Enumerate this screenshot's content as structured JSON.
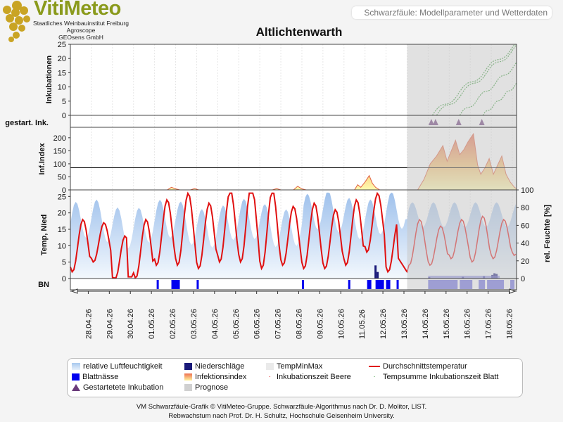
{
  "header": {
    "logo_title": "VitiMeteo",
    "logo_lines": [
      "Staatliches Weinbauinstitut Freiburg",
      "Agroscope",
      "GEOsens GmbH"
    ],
    "subtitle": "Schwarzfäule: Modellparameter und Wetterdaten",
    "title": "Altlichtenwarth"
  },
  "footer": {
    "line1": "VM Schwarzfäule-Grafik © VitiMeteo-Gruppe. Schwarzfäule-Algorithmus nach Dr. D. Molitor, LIST.",
    "line2": "Rebwachstum nach Prof. Dr. H. Schultz, Hochschule Geisenheim University."
  },
  "legend": {
    "rh": "relative Luftfeuchtigkeit",
    "precip": "Niederschläge",
    "minmax": "TempMinMax",
    "avgtemp": "Durchschnittstemperatur",
    "leafwet": "Blattnässe",
    "infindex": "Infektionsindex",
    "incub_berry": "Inkubationszeit Beere",
    "tempsum": "Tempsumme Inkubationszeit Blatt",
    "started": "Gestartetete Inkubation",
    "forecast": "Prognose"
  },
  "colors": {
    "avg_temp": "#e01010",
    "rh_fill": "#a9c9ee",
    "leaf_wetness": "#0000ee",
    "precip": "#1a1a7a",
    "forecast_shade": "#c8c8c8",
    "incubation": "#3a9a3a",
    "infection_line": "#e06040",
    "triangle": "#6a3a7a"
  },
  "chart_data": {
    "type": "line",
    "x_labels": [
      "28.04.26",
      "29.04.26",
      "30.04.26",
      "01.05.26",
      "02.05.26",
      "03.05.26",
      "04.05.26",
      "05.05.26",
      "06.05.26",
      "07.05.26",
      "08.05.26",
      "09.05.26",
      "10.05.26",
      "11.05.26",
      "12.05.26",
      "13.05.26",
      "14.05.26",
      "15.05.26",
      "16.05.26",
      "17.05.26",
      "18.05.26"
    ],
    "forecast_start_day": 16,
    "panels": {
      "incubation": {
        "ylabel": "Inkubationen",
        "yticks": [
          0,
          5,
          10,
          15,
          20,
          25
        ],
        "ylim": [
          0,
          25
        ],
        "series": [
          {
            "start_day": 17.2,
            "end_day": 21.2,
            "end_value": 25
          },
          {
            "start_day": 17.4,
            "end_day": 21.2,
            "end_value": 24
          },
          {
            "start_day": 18.5,
            "end_day": 21.2,
            "end_value": 18
          },
          {
            "start_day": 19.6,
            "end_day": 21.2,
            "end_value": 11
          }
        ]
      },
      "started": {
        "label": "gestart. Ink.",
        "days": [
          17.15,
          17.35,
          18.45,
          19.55
        ]
      },
      "infection": {
        "ylabel": "Inf.Index",
        "yticks": [
          0,
          50,
          100,
          150,
          200
        ],
        "ylim": [
          0,
          240
        ],
        "threshold": 85,
        "points": [
          [
            0,
            0
          ],
          [
            4.6,
            0
          ],
          [
            4.8,
            10
          ],
          [
            5.0,
            4
          ],
          [
            5.2,
            0
          ],
          [
            5.7,
            0
          ],
          [
            5.9,
            5
          ],
          [
            6.1,
            0
          ],
          [
            9.6,
            0
          ],
          [
            9.8,
            5
          ],
          [
            10.0,
            0
          ],
          [
            10.6,
            0
          ],
          [
            10.8,
            14
          ],
          [
            11.0,
            4
          ],
          [
            11.2,
            0
          ],
          [
            13.5,
            0
          ],
          [
            13.65,
            20
          ],
          [
            13.8,
            10
          ],
          [
            14.0,
            30
          ],
          [
            14.2,
            55
          ],
          [
            14.35,
            25
          ],
          [
            14.5,
            10
          ],
          [
            14.7,
            0
          ],
          [
            16.5,
            0
          ],
          [
            16.8,
            40
          ],
          [
            17.1,
            100
          ],
          [
            17.4,
            130
          ],
          [
            17.7,
            170
          ],
          [
            17.9,
            110
          ],
          [
            18.1,
            150
          ],
          [
            18.3,
            190
          ],
          [
            18.5,
            135
          ],
          [
            18.7,
            155
          ],
          [
            18.9,
            185
          ],
          [
            19.15,
            215
          ],
          [
            19.35,
            95
          ],
          [
            19.5,
            60
          ],
          [
            19.7,
            85
          ],
          [
            19.9,
            120
          ],
          [
            20.1,
            60
          ],
          [
            20.3,
            95
          ],
          [
            20.5,
            130
          ],
          [
            20.7,
            60
          ],
          [
            20.9,
            30
          ],
          [
            21.1,
            10
          ],
          [
            21.2,
            5
          ]
        ]
      },
      "weather": {
        "ylabel_left": "Temp, Nied",
        "ylabel_right": "rel. Feuchte [%]",
        "yticks_left": [
          0,
          5,
          10,
          15,
          20,
          25
        ],
        "yticks_right": [
          0,
          20,
          40,
          60,
          80,
          100
        ],
        "ylim_left": [
          0,
          27
        ],
        "ylim_right": [
          0,
          100
        ]
      },
      "leaf_wetness": {
        "label": "BN",
        "intervals": [
          [
            4.1,
            4.2
          ],
          [
            4.8,
            5.2
          ],
          [
            6.0,
            6.1
          ],
          [
            11.0,
            11.1
          ],
          [
            13.2,
            13.3
          ],
          [
            14.1,
            14.3
          ],
          [
            14.5,
            14.9
          ],
          [
            15.0,
            15.2
          ],
          [
            15.5,
            15.6
          ],
          [
            17.0,
            18.4
          ],
          [
            18.5,
            19.1
          ],
          [
            19.4,
            19.7
          ],
          [
            19.8,
            20.6
          ],
          [
            20.9,
            21.1
          ]
        ]
      }
    }
  }
}
